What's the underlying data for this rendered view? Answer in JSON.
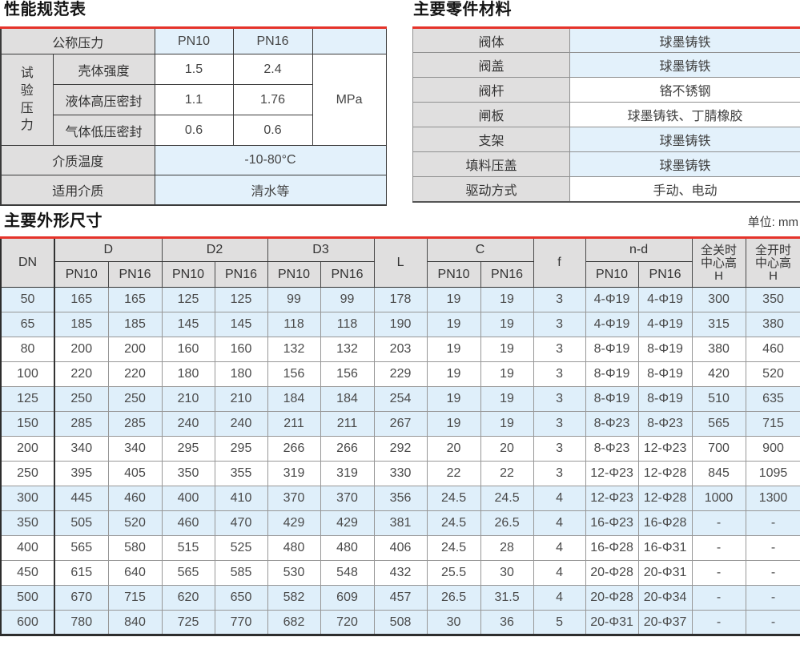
{
  "performance_table": {
    "title": "性能规范表",
    "nominal_pressure_label": "公称压力",
    "pn10_label": "PN10",
    "pn16_label": "PN16",
    "test_pressure_label": "试验压力",
    "rows": [
      {
        "label": "壳体强度",
        "pn10": "1.5",
        "pn16": "2.4"
      },
      {
        "label": "液体高压密封",
        "pn10": "1.1",
        "pn16": "1.76"
      },
      {
        "label": "气体低压密封",
        "pn10": "0.6",
        "pn16": "0.6"
      }
    ],
    "unit": "MPa",
    "medium_temp_label": "介质温度",
    "medium_temp_value": "-10-80°C",
    "medium_label": "适用介质",
    "medium_value": "清水等"
  },
  "materials_table": {
    "title": "主要零件材料",
    "rows": [
      {
        "part": "阀体",
        "material": "球墨铸铁",
        "highlight": true
      },
      {
        "part": "阀盖",
        "material": "球墨铸铁",
        "highlight": true
      },
      {
        "part": "阀杆",
        "material": "铬不锈钢",
        "highlight": false
      },
      {
        "part": "闸板",
        "material": "球墨铸铁、丁腈橡胶",
        "highlight": false
      },
      {
        "part": "支架",
        "material": "球墨铸铁",
        "highlight": true
      },
      {
        "part": "填料压盖",
        "material": "球墨铸铁",
        "highlight": true
      },
      {
        "part": "驱动方式",
        "material": "手动、电动",
        "highlight": false
      }
    ]
  },
  "dimensions_table": {
    "title": "主要外形尺寸",
    "unit_note": "单位: mm",
    "header": {
      "dn": "DN",
      "d": "D",
      "d2": "D2",
      "d3": "D3",
      "l": "L",
      "c": "C",
      "f": "f",
      "nd": "n-d",
      "pn10": "PN10",
      "pn16": "PN16",
      "h_closed_lines": [
        "全关时",
        "中心高",
        "H"
      ],
      "h_open_lines": [
        "全开时",
        "中心高",
        "H"
      ]
    },
    "rows": [
      {
        "highlight": true,
        "cells": [
          "50",
          "165",
          "165",
          "125",
          "125",
          "99",
          "99",
          "178",
          "19",
          "19",
          "3",
          "4-Φ19",
          "4-Φ19",
          "300",
          "350"
        ]
      },
      {
        "highlight": true,
        "cells": [
          "65",
          "185",
          "185",
          "145",
          "145",
          "118",
          "118",
          "190",
          "19",
          "19",
          "3",
          "4-Φ19",
          "4-Φ19",
          "315",
          "380"
        ]
      },
      {
        "highlight": false,
        "cells": [
          "80",
          "200",
          "200",
          "160",
          "160",
          "132",
          "132",
          "203",
          "19",
          "19",
          "3",
          "8-Φ19",
          "8-Φ19",
          "380",
          "460"
        ]
      },
      {
        "highlight": false,
        "cells": [
          "100",
          "220",
          "220",
          "180",
          "180",
          "156",
          "156",
          "229",
          "19",
          "19",
          "3",
          "8-Φ19",
          "8-Φ19",
          "420",
          "520"
        ]
      },
      {
        "highlight": true,
        "cells": [
          "125",
          "250",
          "250",
          "210",
          "210",
          "184",
          "184",
          "254",
          "19",
          "19",
          "3",
          "8-Φ19",
          "8-Φ19",
          "510",
          "635"
        ]
      },
      {
        "highlight": true,
        "cells": [
          "150",
          "285",
          "285",
          "240",
          "240",
          "211",
          "211",
          "267",
          "19",
          "19",
          "3",
          "8-Φ23",
          "8-Φ23",
          "565",
          "715"
        ]
      },
      {
        "highlight": false,
        "cells": [
          "200",
          "340",
          "340",
          "295",
          "295",
          "266",
          "266",
          "292",
          "20",
          "20",
          "3",
          "8-Φ23",
          "12-Φ23",
          "700",
          "900"
        ]
      },
      {
        "highlight": false,
        "cells": [
          "250",
          "395",
          "405",
          "350",
          "355",
          "319",
          "319",
          "330",
          "22",
          "22",
          "3",
          "12-Φ23",
          "12-Φ28",
          "845",
          "1095"
        ]
      },
      {
        "highlight": true,
        "cells": [
          "300",
          "445",
          "460",
          "400",
          "410",
          "370",
          "370",
          "356",
          "24.5",
          "24.5",
          "4",
          "12-Φ23",
          "12-Φ28",
          "1000",
          "1300"
        ]
      },
      {
        "highlight": true,
        "cells": [
          "350",
          "505",
          "520",
          "460",
          "470",
          "429",
          "429",
          "381",
          "24.5",
          "26.5",
          "4",
          "16-Φ23",
          "16-Φ28",
          "-",
          "-"
        ]
      },
      {
        "highlight": false,
        "cells": [
          "400",
          "565",
          "580",
          "515",
          "525",
          "480",
          "480",
          "406",
          "24.5",
          "28",
          "4",
          "16-Φ28",
          "16-Φ31",
          "-",
          "-"
        ]
      },
      {
        "highlight": false,
        "cells": [
          "450",
          "615",
          "640",
          "565",
          "585",
          "530",
          "548",
          "432",
          "25.5",
          "30",
          "4",
          "20-Φ28",
          "20-Φ31",
          "-",
          "-"
        ]
      },
      {
        "highlight": true,
        "cells": [
          "500",
          "670",
          "715",
          "620",
          "650",
          "582",
          "609",
          "457",
          "26.5",
          "31.5",
          "4",
          "20-Φ28",
          "20-Φ34",
          "-",
          "-"
        ]
      },
      {
        "highlight": true,
        "cells": [
          "600",
          "780",
          "840",
          "725",
          "770",
          "682",
          "720",
          "508",
          "30",
          "36",
          "5",
          "20-Φ31",
          "20-Φ37",
          "-",
          "-"
        ]
      }
    ]
  }
}
